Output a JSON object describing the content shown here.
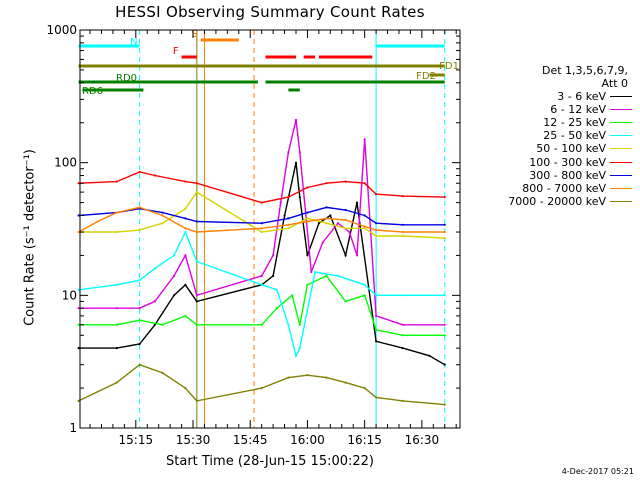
{
  "chart_data": {
    "type": "line",
    "title": "HESSI Observing Summary Count Rates",
    "xlabel": "Start Time (28-Jun-15 15:00:22)",
    "ylabel": "Count Rate (s⁻¹ detector⁻¹)",
    "yscale": "log",
    "ylim": [
      1,
      1000
    ],
    "xlim": [
      "15:00:22",
      "16:40:00"
    ],
    "x_ticks": [
      "15:15",
      "15:30",
      "15:45",
      "16:00",
      "16:15",
      "16:30"
    ],
    "y_ticks": [
      "1",
      "10",
      "100",
      "1000"
    ],
    "grid": false,
    "legend_position": "right",
    "legend_header": [
      "Det 1,3,5,6,7,9,",
      "Att 0"
    ],
    "series": [
      {
        "name": "3 - 6 keV",
        "color": "#000000",
        "x": [
          "15:00",
          "15:10",
          "15:16",
          "15:20",
          "15:25",
          "15:28",
          "15:31",
          "15:48",
          "15:51",
          "15:54",
          "15:57",
          "15:58",
          "16:00",
          "16:03",
          "16:06",
          "16:10",
          "16:13",
          "16:18",
          "16:25",
          "16:32",
          "16:36"
        ],
        "y": [
          4,
          4,
          4.3,
          6,
          10,
          12,
          9,
          12,
          14,
          40,
          100,
          55,
          20,
          35,
          40,
          20,
          50,
          4.5,
          4,
          3.5,
          3
        ]
      },
      {
        "name": "6 - 12 keV",
        "color": "#e000e0",
        "x": [
          "15:00",
          "15:10",
          "15:16",
          "15:20",
          "15:25",
          "15:28",
          "15:31",
          "15:48",
          "15:51",
          "15:53",
          "15:55",
          "15:57",
          "15:58",
          "16:01",
          "16:04",
          "16:08",
          "16:11",
          "16:13",
          "16:15",
          "16:18",
          "16:25",
          "16:36"
        ],
        "y": [
          8,
          8,
          8,
          9,
          14,
          20,
          10,
          14,
          20,
          50,
          120,
          210,
          120,
          15,
          25,
          35,
          30,
          20,
          150,
          7,
          6,
          6
        ]
      },
      {
        "name": "12 - 25 keV",
        "color": "#00ff00",
        "x": [
          "15:00",
          "15:10",
          "15:16",
          "15:22",
          "15:28",
          "15:31",
          "15:48",
          "15:52",
          "15:56",
          "15:58",
          "16:00",
          "16:05",
          "16:10",
          "16:15",
          "16:18",
          "16:25",
          "16:36"
        ],
        "y": [
          6,
          6,
          6.5,
          6,
          7,
          6,
          6,
          8,
          10,
          6,
          12,
          14,
          9,
          10,
          5.5,
          5,
          5
        ]
      },
      {
        "name": "25 - 50 keV",
        "color": "#00ffff",
        "x": [
          "15:00",
          "15:10",
          "15:16",
          "15:20",
          "15:25",
          "15:28",
          "15:31",
          "15:48",
          "15:52",
          "15:55",
          "15:57",
          "15:58",
          "16:02",
          "16:08",
          "16:15",
          "16:18",
          "16:25",
          "16:36"
        ],
        "y": [
          11,
          12,
          13,
          16,
          20,
          30,
          18,
          12,
          11,
          6,
          3.5,
          4,
          15,
          14,
          12,
          10,
          10,
          10
        ]
      },
      {
        "name": "50 - 100 keV",
        "color": "#d4d400",
        "x": [
          "15:00",
          "15:10",
          "15:16",
          "15:22",
          "15:28",
          "15:31",
          "15:48",
          "15:55",
          "16:00",
          "16:05",
          "16:10",
          "16:15",
          "16:18",
          "16:25",
          "16:36"
        ],
        "y": [
          30,
          30,
          31,
          35,
          45,
          60,
          30,
          32,
          38,
          35,
          32,
          32,
          28,
          28,
          27
        ]
      },
      {
        "name": "100 - 300 keV",
        "color": "#ff0000",
        "x": [
          "15:00",
          "15:10",
          "15:16",
          "15:20",
          "15:28",
          "15:31",
          "15:48",
          "15:55",
          "16:00",
          "16:05",
          "16:10",
          "16:15",
          "16:18",
          "16:25",
          "16:36"
        ],
        "y": [
          70,
          72,
          85,
          80,
          72,
          70,
          50,
          55,
          65,
          70,
          72,
          70,
          58,
          56,
          55
        ]
      },
      {
        "name": "300 - 800 keV",
        "color": "#0000e0",
        "x": [
          "15:00",
          "15:10",
          "15:16",
          "15:22",
          "15:28",
          "15:31",
          "15:48",
          "15:55",
          "16:00",
          "16:05",
          "16:10",
          "16:15",
          "16:18",
          "16:25",
          "16:36"
        ],
        "y": [
          40,
          42,
          45,
          42,
          38,
          36,
          35,
          38,
          42,
          46,
          44,
          40,
          35,
          34,
          34
        ]
      },
      {
        "name": "800 - 7000 keV",
        "color": "#ff8000",
        "x": [
          "15:00",
          "15:05",
          "15:10",
          "15:16",
          "15:22",
          "15:28",
          "15:31",
          "15:48",
          "15:55",
          "16:00",
          "16:05",
          "16:10",
          "16:15",
          "16:18",
          "16:25",
          "16:36"
        ],
        "y": [
          30,
          36,
          42,
          46,
          40,
          32,
          30,
          32,
          34,
          36,
          38,
          37,
          33,
          31,
          30,
          30
        ]
      },
      {
        "name": "7000 - 20000 keV",
        "color": "#808000",
        "x": [
          "15:00",
          "15:10",
          "15:16",
          "15:22",
          "15:28",
          "15:31",
          "15:48",
          "15:55",
          "16:00",
          "16:05",
          "16:10",
          "16:15",
          "16:18",
          "16:25",
          "16:36"
        ],
        "y": [
          1.6,
          2.2,
          3,
          2.6,
          2,
          1.6,
          2,
          2.4,
          2.5,
          2.4,
          2.2,
          2,
          1.7,
          1.6,
          1.5
        ]
      }
    ],
    "flags": [
      {
        "label": "N",
        "color": "#00ffff",
        "segments": [
          [
            "15:00",
            "15:16"
          ],
          [
            "16:18",
            "16:36"
          ]
        ]
      },
      {
        "label": "S",
        "color": "#ff8000",
        "segments": [
          [
            "15:32",
            "15:42"
          ]
        ]
      },
      {
        "label": "F",
        "color": "#ff0000",
        "segments": [
          [
            "15:27",
            "15:31"
          ],
          [
            "15:49",
            "15:57"
          ],
          [
            "15:59",
            "16:02"
          ],
          [
            "16:03",
            "16:17"
          ]
        ]
      },
      {
        "label": "FD1",
        "color": "#808000",
        "segments": [
          [
            "15:00",
            "16:36"
          ]
        ]
      },
      {
        "label": "FD2",
        "color": "#808000",
        "segments": [
          [
            "16:32",
            "16:36"
          ]
        ]
      },
      {
        "label": "RD0",
        "color": "#008000",
        "segments": [
          [
            "15:00",
            "15:47"
          ],
          [
            "15:49",
            "16:36"
          ]
        ]
      },
      {
        "label": "RD6",
        "color": "#008000",
        "segments": [
          [
            "15:01",
            "15:17"
          ],
          [
            "15:55",
            "15:58"
          ]
        ]
      }
    ],
    "vertical_markers": [
      {
        "time": "15:16",
        "color": "#00ffff",
        "style": "dashed"
      },
      {
        "time": "15:31",
        "color": "#808000",
        "style": "solid"
      },
      {
        "time": "15:33",
        "color": "#ff8000",
        "style": "solid"
      },
      {
        "time": "15:46",
        "color": "#ff8000",
        "style": "dashed"
      },
      {
        "time": "16:18",
        "color": "#00ffff",
        "style": "solid"
      },
      {
        "time": "16:36",
        "color": "#00ffff",
        "style": "dashed"
      }
    ]
  },
  "footer_stamp": "4-Dec-2017 05:21"
}
